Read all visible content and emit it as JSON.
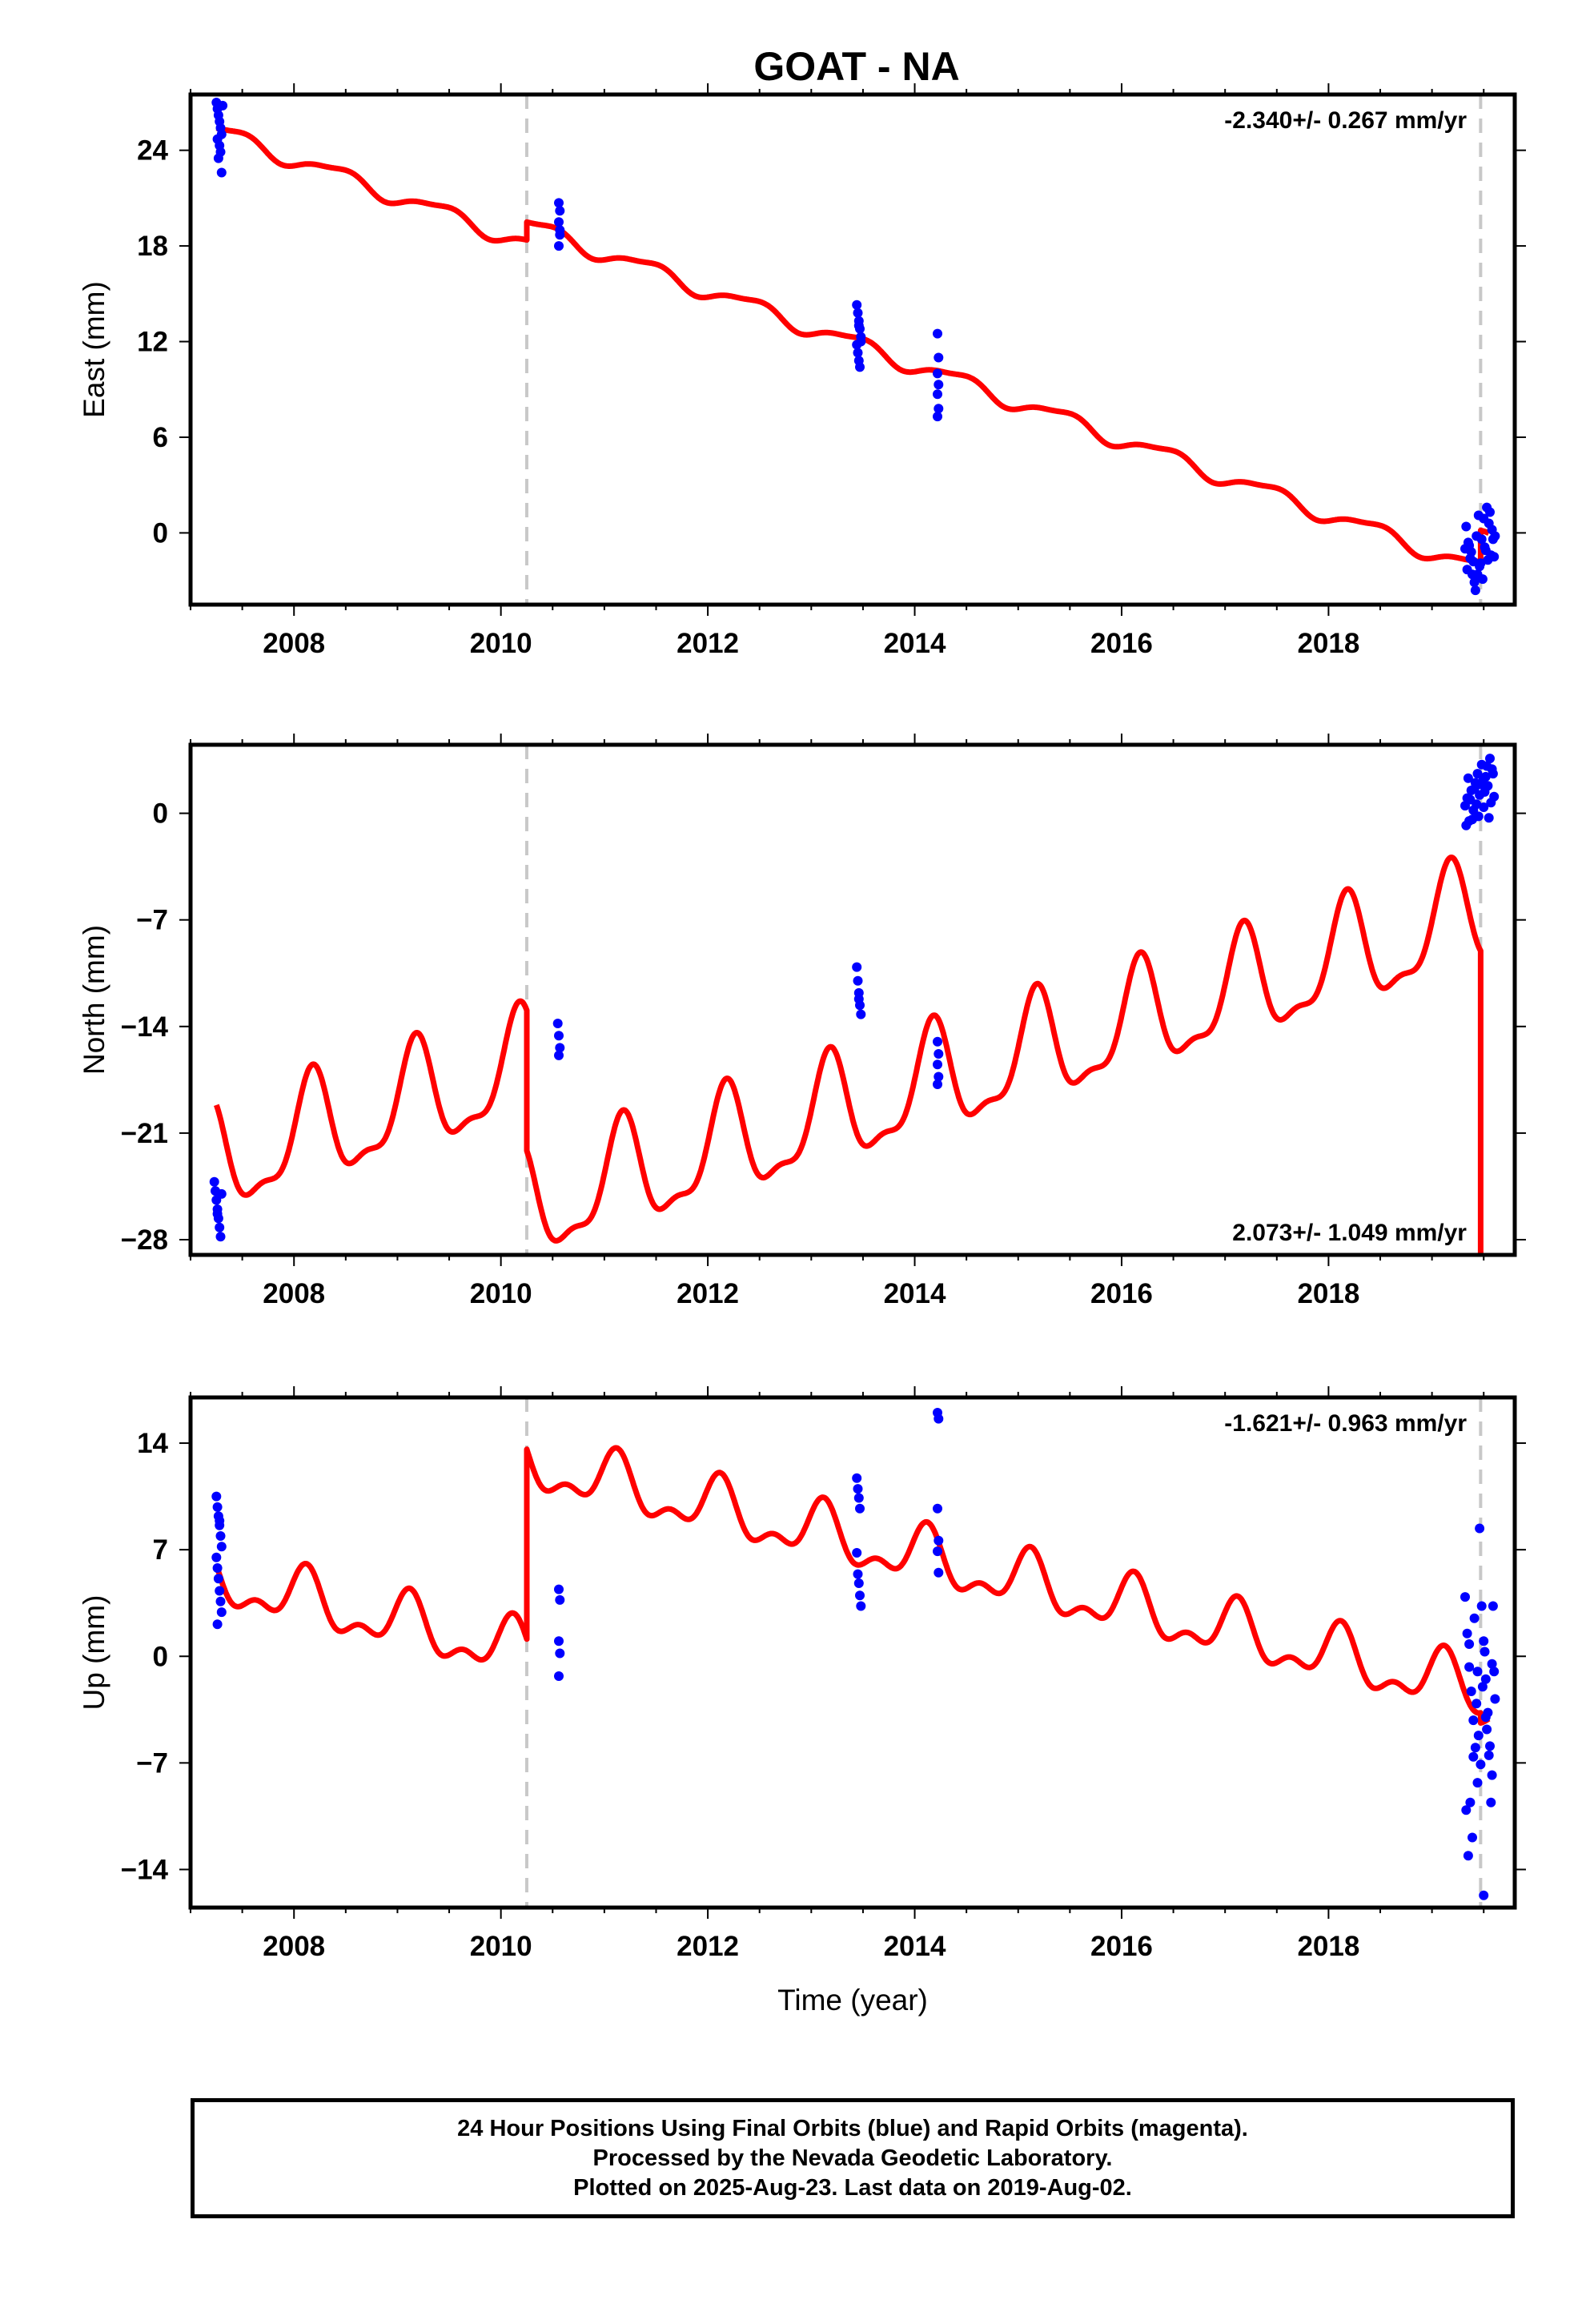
{
  "title": "GOAT - NA",
  "chart_data": [
    {
      "type": "scatter",
      "name": "east",
      "ylabel": "East (mm)",
      "xlabel": "",
      "xlim": [
        2007.0,
        2019.8
      ],
      "ylim": [
        -4.5,
        27.5
      ],
      "yticks": [
        24,
        18,
        12,
        6,
        0
      ],
      "ytick_labels": [
        "24",
        "18",
        "12",
        "6",
        "0"
      ],
      "xticks": [
        2008,
        2010,
        2012,
        2014,
        2016,
        2018
      ],
      "xtick_labels": [
        "2008",
        "2010",
        "2012",
        "2014",
        "2016",
        "2018"
      ],
      "rate": "-2.340+/- 0.267 mm/yr",
      "rate_position": "top-right",
      "breaks": [
        2010.25,
        2019.47
      ],
      "model": {
        "rate": -2.34,
        "annual_amp": 0.5,
        "annual_phase": -1.1,
        "semiannual_amp": 0.15,
        "semiannual_phase": 0.2,
        "segments": [
          {
            "start": 2007.25,
            "end": 2010.25,
            "intercept": 25.2
          },
          {
            "start": 2010.25,
            "end": 2019.47,
            "intercept": 19.3
          },
          {
            "start": 2019.47,
            "end": 2019.55,
            "intercept": -0.3
          }
        ]
      },
      "points": [
        [
          2007.25,
          27.0
        ],
        [
          2007.26,
          26.6
        ],
        [
          2007.27,
          26.2
        ],
        [
          2007.28,
          25.8
        ],
        [
          2007.29,
          25.4
        ],
        [
          2007.3,
          25.0
        ],
        [
          2007.26,
          24.7
        ],
        [
          2007.28,
          24.3
        ],
        [
          2007.29,
          23.9
        ],
        [
          2007.27,
          23.5
        ],
        [
          2007.3,
          22.6
        ],
        [
          2007.31,
          26.8
        ],
        [
          2010.56,
          20.7
        ],
        [
          2010.57,
          20.2
        ],
        [
          2010.56,
          19.5
        ],
        [
          2010.57,
          18.7
        ],
        [
          2010.56,
          18.0
        ],
        [
          2010.57,
          19.0
        ],
        [
          2013.44,
          14.3
        ],
        [
          2013.45,
          13.8
        ],
        [
          2013.46,
          13.3
        ],
        [
          2013.47,
          12.8
        ],
        [
          2013.48,
          12.3
        ],
        [
          2013.44,
          11.8
        ],
        [
          2013.45,
          11.3
        ],
        [
          2013.46,
          10.8
        ],
        [
          2013.47,
          10.4
        ],
        [
          2013.48,
          12.0
        ],
        [
          2013.46,
          13.0
        ],
        [
          2014.22,
          12.5
        ],
        [
          2014.23,
          11.0
        ],
        [
          2014.22,
          10.0
        ],
        [
          2014.23,
          9.3
        ],
        [
          2014.22,
          8.7
        ],
        [
          2014.23,
          7.8
        ],
        [
          2014.22,
          7.3
        ],
        [
          2019.33,
          0.4
        ],
        [
          2019.35,
          -0.6
        ],
        [
          2019.37,
          -1.6
        ],
        [
          2019.39,
          -2.6
        ],
        [
          2019.41,
          -3.1
        ],
        [
          2019.43,
          -0.2
        ],
        [
          2019.45,
          1.1
        ],
        [
          2019.47,
          -1.9
        ],
        [
          2019.49,
          -2.9
        ],
        [
          2019.51,
          -0.9
        ],
        [
          2019.53,
          1.6
        ],
        [
          2019.55,
          0.6
        ],
        [
          2019.57,
          -1.4
        ],
        [
          2019.59,
          -0.4
        ],
        [
          2019.34,
          -2.3
        ],
        [
          2019.38,
          -1.2
        ],
        [
          2019.42,
          -3.6
        ],
        [
          2019.46,
          -2.1
        ],
        [
          2019.5,
          0.9
        ],
        [
          2019.54,
          -1.7
        ],
        [
          2019.58,
          0.2
        ],
        [
          2019.36,
          -0.8
        ],
        [
          2019.44,
          -2.6
        ],
        [
          2019.52,
          -1.1
        ],
        [
          2019.56,
          1.3
        ],
        [
          2019.4,
          -1.8
        ],
        [
          2019.48,
          -0.4
        ],
        [
          2019.6,
          -1.5
        ],
        [
          2019.61,
          -0.2
        ],
        [
          2019.32,
          -1.0
        ]
      ]
    },
    {
      "type": "scatter",
      "name": "north",
      "ylabel": "North (mm)",
      "xlabel": "",
      "xlim": [
        2007.0,
        2019.8
      ],
      "ylim": [
        -29.0,
        4.5
      ],
      "yticks": [
        0,
        -7,
        -14,
        -21,
        -28
      ],
      "ytick_labels": [
        "0",
        "−7",
        "−14",
        "−21",
        "−28"
      ],
      "xticks": [
        2008,
        2010,
        2012,
        2014,
        2016,
        2018
      ],
      "xtick_labels": [
        "2008",
        "2010",
        "2012",
        "2014",
        "2016",
        "2018"
      ],
      "rate": "2.073+/- 1.049 mm/yr",
      "rate_position": "bottom-right",
      "breaks": [
        2010.25,
        2019.47
      ],
      "model": {
        "rate": 2.073,
        "annual_amp": 3.4,
        "annual_phase": 0.5,
        "semiannual_amp": 1.2,
        "semiannual_phase": -0.8,
        "segments": [
          {
            "start": 2007.25,
            "end": 2010.25,
            "intercept": -23.0
          },
          {
            "start": 2010.25,
            "end": 2019.47,
            "intercept": -26.0
          },
          {
            "start": 2019.47,
            "end": 2019.55,
            "intercept": -28.2
          }
        ]
      },
      "points": [
        [
          2007.23,
          -24.2
        ],
        [
          2007.24,
          -24.8
        ],
        [
          2007.25,
          -25.4
        ],
        [
          2007.26,
          -26.0
        ],
        [
          2007.27,
          -26.6
        ],
        [
          2007.28,
          -27.2
        ],
        [
          2007.29,
          -27.8
        ],
        [
          2007.3,
          -25.0
        ],
        [
          2007.26,
          -26.3
        ],
        [
          2010.55,
          -13.8
        ],
        [
          2010.56,
          -14.6
        ],
        [
          2010.57,
          -15.4
        ],
        [
          2010.56,
          -15.9
        ],
        [
          2013.44,
          -10.1
        ],
        [
          2013.45,
          -11.0
        ],
        [
          2013.46,
          -11.8
        ],
        [
          2013.47,
          -12.6
        ],
        [
          2013.48,
          -13.2
        ],
        [
          2013.46,
          -12.2
        ],
        [
          2014.22,
          -15.0
        ],
        [
          2014.23,
          -15.8
        ],
        [
          2014.22,
          -16.5
        ],
        [
          2014.23,
          -17.3
        ],
        [
          2014.22,
          -17.8
        ],
        [
          2019.32,
          0.5
        ],
        [
          2019.34,
          1.0
        ],
        [
          2019.36,
          -0.5
        ],
        [
          2019.38,
          1.5
        ],
        [
          2019.4,
          0.2
        ],
        [
          2019.42,
          2.0
        ],
        [
          2019.44,
          2.6
        ],
        [
          2019.46,
          1.2
        ],
        [
          2019.48,
          3.2
        ],
        [
          2019.5,
          0.4
        ],
        [
          2019.52,
          2.4
        ],
        [
          2019.54,
          1.8
        ],
        [
          2019.56,
          3.6
        ],
        [
          2019.58,
          2.9
        ],
        [
          2019.6,
          1.1
        ],
        [
          2019.33,
          -0.8
        ],
        [
          2019.37,
          0.9
        ],
        [
          2019.41,
          1.6
        ],
        [
          2019.45,
          -0.2
        ],
        [
          2019.49,
          2.1
        ],
        [
          2019.53,
          3.1
        ],
        [
          2019.57,
          0.7
        ],
        [
          2019.35,
          2.3
        ],
        [
          2019.43,
          0.6
        ],
        [
          2019.51,
          1.4
        ],
        [
          2019.55,
          -0.3
        ],
        [
          2019.59,
          2.6
        ],
        [
          2019.39,
          -0.4
        ],
        [
          2019.47,
          1.9
        ]
      ]
    },
    {
      "type": "scatter",
      "name": "up",
      "ylabel": "Up (mm)",
      "xlabel": "Time (year)",
      "xlim": [
        2007.0,
        2019.8
      ],
      "ylim": [
        -16.5,
        17.0
      ],
      "yticks": [
        14,
        7,
        0,
        -7,
        -14
      ],
      "ytick_labels": [
        "14",
        "7",
        "0",
        "−7",
        "−14"
      ],
      "xticks": [
        2008,
        2010,
        2012,
        2014,
        2016,
        2018
      ],
      "xtick_labels": [
        "2008",
        "2010",
        "2012",
        "2014",
        "2016",
        "2018"
      ],
      "rate": "-1.621+/- 0.963 mm/yr",
      "rate_position": "top-right",
      "breaks": [
        2010.25,
        2019.47
      ],
      "model": {
        "rate": -1.621,
        "annual_amp": 1.6,
        "annual_phase": 0.9,
        "semiannual_amp": 0.9,
        "semiannual_phase": 0.0,
        "segments": [
          {
            "start": 2007.25,
            "end": 2010.25,
            "intercept": 5.0
          },
          {
            "start": 2010.25,
            "end": 2019.47,
            "intercept": 12.6
          },
          {
            "start": 2019.47,
            "end": 2019.55,
            "intercept": -3.0
          }
        ]
      },
      "points": [
        [
          2007.25,
          10.5
        ],
        [
          2007.26,
          9.8
        ],
        [
          2007.27,
          9.2
        ],
        [
          2007.28,
          8.6
        ],
        [
          2007.29,
          7.9
        ],
        [
          2007.3,
          7.2
        ],
        [
          2007.25,
          6.5
        ],
        [
          2007.26,
          5.8
        ],
        [
          2007.27,
          5.1
        ],
        [
          2007.28,
          4.3
        ],
        [
          2007.29,
          3.6
        ],
        [
          2007.3,
          2.9
        ],
        [
          2007.26,
          2.1
        ],
        [
          2007.28,
          8.9
        ],
        [
          2010.56,
          4.4
        ],
        [
          2010.57,
          3.7
        ],
        [
          2010.56,
          1.0
        ],
        [
          2010.57,
          0.2
        ],
        [
          2010.56,
          -1.3
        ],
        [
          2013.44,
          11.7
        ],
        [
          2013.45,
          11.0
        ],
        [
          2013.46,
          10.4
        ],
        [
          2013.47,
          9.7
        ],
        [
          2013.44,
          6.8
        ],
        [
          2013.45,
          5.4
        ],
        [
          2013.46,
          4.8
        ],
        [
          2013.47,
          4.0
        ],
        [
          2013.48,
          3.3
        ],
        [
          2014.22,
          16.0
        ],
        [
          2014.23,
          15.6
        ],
        [
          2014.22,
          9.7
        ],
        [
          2014.23,
          7.6
        ],
        [
          2014.22,
          6.9
        ],
        [
          2014.23,
          5.5
        ],
        [
          2019.32,
          3.9
        ],
        [
          2019.34,
          1.5
        ],
        [
          2019.36,
          -0.7
        ],
        [
          2019.38,
          -2.3
        ],
        [
          2019.4,
          -4.2
        ],
        [
          2019.42,
          -6.0
        ],
        [
          2019.44,
          -8.3
        ],
        [
          2019.46,
          8.4
        ],
        [
          2019.48,
          3.3
        ],
        [
          2019.5,
          1.0
        ],
        [
          2019.52,
          -1.5
        ],
        [
          2019.54,
          -3.7
        ],
        [
          2019.56,
          -5.9
        ],
        [
          2019.58,
          -7.8
        ],
        [
          2019.6,
          -1.0
        ],
        [
          2019.33,
          -10.1
        ],
        [
          2019.35,
          -13.1
        ],
        [
          2019.37,
          -9.6
        ],
        [
          2019.39,
          -11.9
        ],
        [
          2019.41,
          2.5
        ],
        [
          2019.43,
          -3.1
        ],
        [
          2019.45,
          -5.2
        ],
        [
          2019.47,
          -7.1
        ],
        [
          2019.49,
          -2.0
        ],
        [
          2019.51,
          0.3
        ],
        [
          2019.53,
          -4.8
        ],
        [
          2019.55,
          -6.5
        ],
        [
          2019.57,
          -9.6
        ],
        [
          2019.59,
          3.3
        ],
        [
          2019.61,
          -2.8
        ],
        [
          2019.5,
          -15.7
        ],
        [
          2019.36,
          0.8
        ],
        [
          2019.44,
          -1.0
        ],
        [
          2019.52,
          -4.0
        ],
        [
          2019.58,
          -0.5
        ],
        [
          2019.4,
          -6.6
        ]
      ]
    }
  ],
  "footer": {
    "line1": "24 Hour Positions Using Final Orbits (blue) and Rapid Orbits (magenta).",
    "line2": "Processed by the Nevada Geodetic Laboratory.",
    "line3": "Plotted on 2025-Aug-23. Last data on 2019-Aug-02."
  },
  "colors": {
    "points": "#0000ff",
    "model": "#ff0000",
    "break_line": "#c8c8c8",
    "frame": "#000000"
  }
}
